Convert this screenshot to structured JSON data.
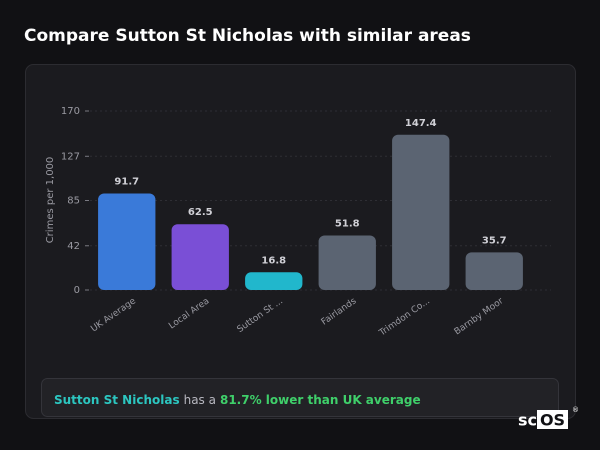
{
  "header": {
    "title": "Compare Sutton St Nicholas with similar areas"
  },
  "chart_data": {
    "type": "bar",
    "y_label": "Crimes per 1,000",
    "categories": [
      "UK Average",
      "Local Area",
      "Sutton St ...",
      "Fairlands",
      "Trimdon Co...",
      "Barnby Moor"
    ],
    "values": [
      91.7,
      62.5,
      16.8,
      51.8,
      147.4,
      35.7
    ],
    "colors": [
      "#3a7ad9",
      "#7a4fd6",
      "#21b7cc",
      "#5b6472",
      "#5b6472",
      "#5b6472"
    ],
    "ylim": [
      0,
      170
    ],
    "yticks": [
      0,
      42,
      85,
      127,
      170
    ],
    "grid": true
  },
  "insight": {
    "area": "Sutton St Nicholas",
    "text": "has a",
    "highlight": "81.7% lower than UK average"
  },
  "logo": {
    "left": "sc",
    "right": "OS",
    "mark": "®"
  }
}
